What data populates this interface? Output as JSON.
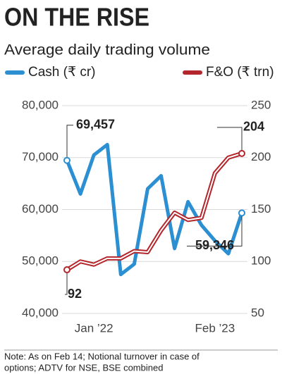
{
  "chart_data": {
    "type": "line",
    "title": "ON THE RISE",
    "subtitle": "Average daily trading volume",
    "categories": [
      null,
      null,
      "Jan ’22",
      null,
      null,
      null,
      null,
      null,
      null,
      null,
      null,
      "Feb ’23",
      null,
      null
    ],
    "series": [
      {
        "name": "Cash (₹ cr)",
        "color": "#2b8fd1",
        "values": [
          69457,
          63000,
          70500,
          72500,
          47500,
          49500,
          64000,
          66500,
          52500,
          61500,
          57000,
          54000,
          51500,
          59346
        ],
        "value_labels": [
          "69,457",
          null,
          null,
          null,
          null,
          null,
          null,
          null,
          null,
          null,
          null,
          null,
          null,
          "59,346"
        ]
      },
      {
        "name": "F&O (₹ trn)",
        "color": "#b3262b",
        "axis": "y2",
        "values": [
          92,
          100,
          97,
          103,
          103,
          110,
          109,
          130,
          147,
          140,
          142,
          185,
          200,
          204
        ],
        "value_labels": [
          "92",
          null,
          null,
          null,
          null,
          null,
          null,
          null,
          null,
          null,
          null,
          null,
          null,
          "204"
        ]
      }
    ],
    "ylim": [
      40000,
      80000
    ],
    "yticks": [
      {
        "value": 40000,
        "label": "40,000"
      },
      {
        "value": 50000,
        "label": "50,000"
      },
      {
        "value": 60000,
        "label": "60,000"
      },
      {
        "value": 70000,
        "label": "70,000"
      },
      {
        "value": 80000,
        "label": "80,000"
      }
    ],
    "y2lim": [
      50,
      250
    ],
    "y2ticks": [
      50,
      100,
      150,
      200,
      250
    ],
    "grid": true,
    "note": [
      "Note: As on Feb 14; Notional turnover in case of",
      "options; ADTV for NSE, BSE combined"
    ]
  }
}
